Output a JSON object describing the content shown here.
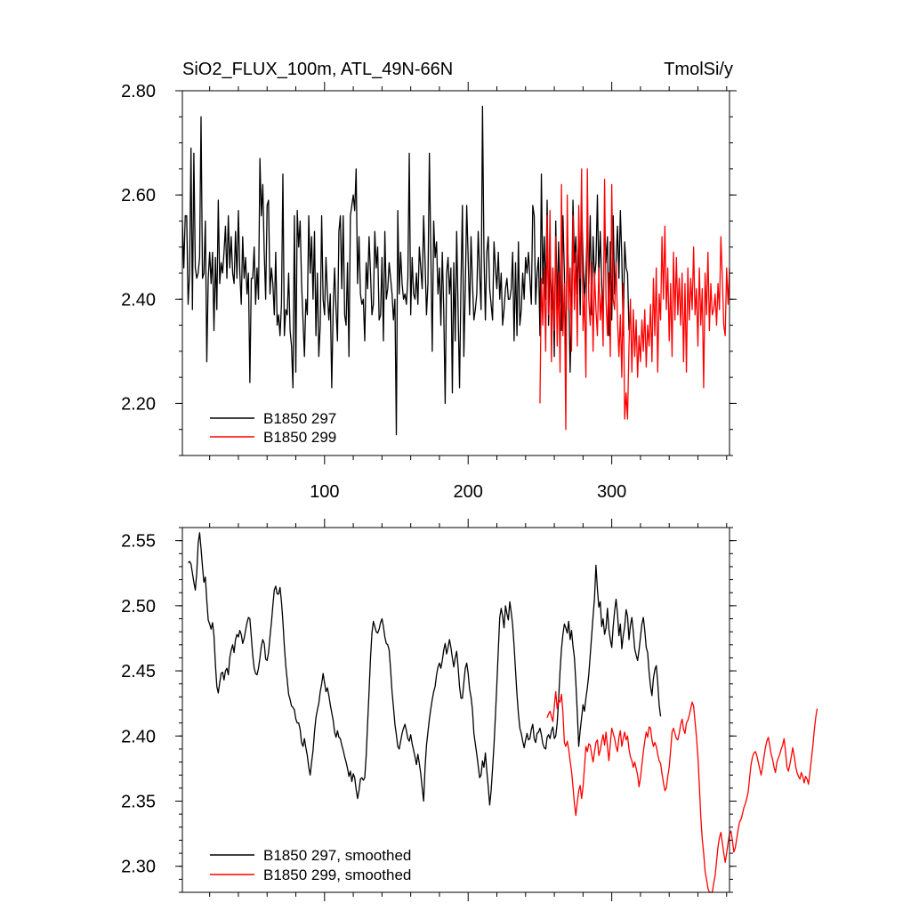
{
  "chart_data": [
    {
      "type": "line",
      "title": "SiO2_FLUX_100m, ATL_49N-66N",
      "units": "TmolSi/y",
      "xlim": [
        1,
        382
      ],
      "ylim": [
        2.1,
        2.8
      ],
      "xticks": [
        100,
        200,
        300
      ],
      "xtick_labels": [
        "100",
        "200",
        "300"
      ],
      "yticks": [
        2.2,
        2.4,
        2.6,
        2.8
      ],
      "ytick_labels": [
        "2.20",
        "2.40",
        "2.60",
        "2.80"
      ],
      "grid": false,
      "legend_position": "bottom-left",
      "series": [
        {
          "name": "B1850 297",
          "color": "#000000",
          "x_start": 1,
          "values": [
            2.55,
            2.46,
            2.56,
            2.56,
            2.39,
            2.45,
            2.69,
            2.38,
            2.68,
            2.46,
            2.44,
            2.45,
            2.48,
            2.75,
            2.44,
            2.45,
            2.55,
            2.28,
            2.44,
            2.49,
            2.43,
            2.49,
            2.34,
            2.48,
            2.38,
            2.59,
            2.43,
            2.47,
            2.45,
            2.49,
            2.54,
            2.44,
            2.56,
            2.46,
            2.52,
            2.45,
            2.43,
            2.53,
            2.44,
            2.57,
            2.45,
            2.39,
            2.52,
            2.44,
            2.48,
            2.41,
            2.45,
            2.24,
            2.44,
            2.44,
            2.5,
            2.39,
            2.46,
            2.4,
            2.67,
            2.56,
            2.62,
            2.49,
            2.4,
            2.58,
            2.59,
            2.41,
            2.46,
            2.43,
            2.37,
            2.49,
            2.35,
            2.37,
            2.33,
            2.39,
            2.64,
            2.33,
            2.38,
            2.37,
            2.45,
            2.34,
            2.31,
            2.23,
            2.56,
            2.26,
            2.57,
            2.5,
            2.55,
            2.43,
            2.36,
            2.29,
            2.4,
            2.37,
            2.56,
            2.45,
            2.52,
            2.4,
            2.53,
            2.33,
            2.45,
            2.29,
            2.35,
            2.56,
            2.4,
            2.37,
            2.48,
            2.41,
            2.36,
            2.41,
            2.23,
            2.38,
            2.46,
            2.38,
            2.32,
            2.53,
            2.56,
            2.42,
            2.56,
            2.37,
            2.35,
            2.47,
            2.29,
            2.56,
            2.58,
            2.6,
            2.57,
            2.65,
            2.43,
            2.52,
            2.41,
            2.39,
            2.4,
            2.32,
            2.47,
            2.42,
            2.52,
            2.45,
            2.37,
            2.39,
            2.53,
            2.46,
            2.5,
            2.36,
            2.37,
            2.48,
            2.32,
            2.53,
            2.4,
            2.42,
            2.47,
            2.44,
            2.41,
            2.36,
            2.4,
            2.14,
            2.57,
            2.41,
            2.49,
            2.43,
            2.4,
            2.41,
            2.39,
            2.44,
            2.68,
            2.37,
            2.48,
            2.41,
            2.4,
            2.45,
            2.39,
            2.5,
            2.46,
            2.42,
            2.56,
            2.47,
            2.37,
            2.43,
            2.68,
            2.49,
            2.3,
            2.55,
            2.48,
            2.51,
            2.41,
            2.46,
            2.35,
            2.49,
            2.38,
            2.2,
            2.45,
            2.48,
            2.41,
            2.46,
            2.22,
            2.47,
            2.32,
            2.53,
            2.38,
            2.23,
            2.43,
            2.58,
            2.29,
            2.42,
            2.58,
            2.48,
            2.37,
            2.52,
            2.43,
            2.36,
            2.38,
            2.41,
            2.53,
            2.45,
            2.38,
            2.77,
            2.49,
            2.36,
            2.49,
            2.52,
            2.42,
            2.39,
            2.36,
            2.51,
            2.46,
            2.42,
            2.49,
            2.4,
            2.45,
            2.35,
            2.38,
            2.42,
            2.44,
            2.4,
            2.4,
            2.42,
            2.49,
            2.32,
            2.47,
            2.33,
            2.51,
            2.35,
            2.38,
            2.45,
            2.4,
            2.48,
            2.45,
            2.49,
            2.44,
            2.39,
            2.58,
            2.56,
            2.39,
            2.45,
            2.48,
            2.33,
            2.64,
            2.43,
            2.52,
            2.4,
            2.59,
            2.35,
            2.47,
            2.38,
            2.46,
            2.29,
            2.55,
            2.38,
            2.51,
            2.4,
            2.34,
            2.56,
            2.45,
            2.28,
            2.54,
            2.43,
            2.26,
            2.38,
            2.59,
            2.47,
            2.52,
            2.41,
            2.53,
            2.37,
            2.58,
            2.48,
            2.4,
            2.45,
            2.54,
            2.43,
            2.56,
            2.37,
            2.52,
            2.44,
            2.47,
            2.6,
            2.44,
            2.53,
            2.43,
            2.36,
            2.55,
            2.47,
            2.52,
            2.33,
            2.51,
            2.36,
            2.56,
            2.41,
            2.47,
            2.54,
            2.44,
            2.57,
            2.48,
            2.33,
            2.51,
            2.46,
            2.45,
            2.34
          ]
        },
        {
          "name": "B1850 299",
          "color": "#ff0000",
          "x_start": 250,
          "values": [
            2.2,
            2.44,
            2.35,
            2.46,
            2.3,
            2.56,
            2.37,
            2.57,
            2.28,
            2.46,
            2.34,
            2.52,
            2.31,
            2.45,
            2.26,
            2.62,
            2.33,
            2.43,
            2.15,
            2.6,
            2.38,
            2.46,
            2.3,
            2.56,
            2.38,
            2.49,
            2.31,
            2.58,
            2.44,
            2.65,
            2.34,
            2.41,
            2.25,
            2.65,
            2.4,
            2.35,
            2.47,
            2.3,
            2.45,
            2.38,
            2.33,
            2.46,
            2.36,
            2.41,
            2.31,
            2.63,
            2.4,
            2.33,
            2.45,
            2.29,
            2.62,
            2.4,
            2.38,
            2.47,
            2.36,
            2.29,
            2.37,
            2.25,
            2.43,
            2.17,
            2.22,
            2.17,
            2.31,
            2.4,
            2.26,
            2.38,
            2.29,
            2.36,
            2.25,
            2.33,
            2.28,
            2.36,
            2.3,
            2.38,
            2.27,
            2.35,
            2.31,
            2.39,
            2.28,
            2.44,
            2.33,
            2.46,
            2.26,
            2.41,
            2.36,
            2.52,
            2.4,
            2.54,
            2.38,
            2.46,
            2.32,
            2.43,
            2.29,
            2.49,
            2.36,
            2.48,
            2.37,
            2.44,
            2.35,
            2.45,
            2.28,
            2.43,
            2.26,
            2.46,
            2.36,
            2.44,
            2.38,
            2.5,
            2.37,
            2.42,
            2.31,
            2.46,
            2.35,
            2.42,
            2.23,
            2.45,
            2.37,
            2.49,
            2.34,
            2.43,
            2.37,
            2.38,
            2.41,
            2.35,
            2.43,
            2.38,
            2.52,
            2.44,
            2.35,
            2.33,
            2.46,
            2.39,
            2.46
          ]
        }
      ]
    },
    {
      "type": "line",
      "xlim": [
        1,
        382
      ],
      "ylim": [
        2.28,
        2.56
      ],
      "xticks": [
        100,
        200,
        300
      ],
      "yticks": [
        2.3,
        2.35,
        2.4,
        2.45,
        2.5,
        2.55
      ],
      "ytick_labels": [
        "2.30",
        "2.35",
        "2.40",
        "2.45",
        "2.50",
        "2.55"
      ],
      "grid": false,
      "legend_position": "bottom-left",
      "series": [
        {
          "name": "B1850 297, smoothed",
          "color": "#000000",
          "x_start": 5,
          "values": [
            2.533,
            2.534,
            2.532,
            2.525,
            2.518,
            2.512,
            2.525,
            2.548,
            2.556,
            2.544,
            2.53,
            2.518,
            2.522,
            2.504,
            2.489,
            2.486,
            2.482,
            2.487,
            2.477,
            2.455,
            2.438,
            2.433,
            2.441,
            2.448,
            2.449,
            2.443,
            2.45,
            2.452,
            2.447,
            2.46,
            2.466,
            2.47,
            2.464,
            2.474,
            2.478,
            2.476,
            2.481,
            2.478,
            2.471,
            2.475,
            2.481,
            2.487,
            2.491,
            2.49,
            2.476,
            2.462,
            2.452,
            2.448,
            2.447,
            2.452,
            2.46,
            2.469,
            2.474,
            2.471,
            2.459,
            2.458,
            2.464,
            2.476,
            2.487,
            2.5,
            2.512,
            2.515,
            2.509,
            2.509,
            2.514,
            2.503,
            2.488,
            2.469,
            2.454,
            2.443,
            2.432,
            2.428,
            2.423,
            2.422,
            2.42,
            2.413,
            2.41,
            2.41,
            2.405,
            2.395,
            2.392,
            2.398,
            2.391,
            2.385,
            2.376,
            2.37,
            2.38,
            2.389,
            2.403,
            2.414,
            2.42,
            2.425,
            2.434,
            2.44,
            2.448,
            2.441,
            2.434,
            2.437,
            2.431,
            2.424,
            2.418,
            2.412,
            2.403,
            2.399,
            2.404,
            2.399,
            2.398,
            2.393,
            2.389,
            2.384,
            2.38,
            2.375,
            2.369,
            2.373,
            2.365,
            2.371,
            2.368,
            2.359,
            2.352,
            2.358,
            2.367,
            2.368,
            2.366,
            2.368,
            2.385,
            2.41,
            2.434,
            2.46,
            2.479,
            2.488,
            2.484,
            2.48,
            2.479,
            2.482,
            2.487,
            2.49,
            2.484,
            2.476,
            2.471,
            2.47,
            2.466,
            2.451,
            2.434,
            2.422,
            2.409,
            2.401,
            2.392,
            2.39,
            2.396,
            2.402,
            2.406,
            2.409,
            2.404,
            2.398,
            2.396,
            2.401,
            2.394,
            2.389,
            2.384,
            2.378,
            2.386,
            2.379,
            2.371,
            2.36,
            2.35,
            2.376,
            2.393,
            2.403,
            2.413,
            2.421,
            2.428,
            2.434,
            2.438,
            2.447,
            2.453,
            2.456,
            2.452,
            2.458,
            2.466,
            2.471,
            2.463,
            2.468,
            2.474,
            2.468,
            2.46,
            2.453,
            2.46,
            2.465,
            2.453,
            2.438,
            2.429,
            2.429,
            2.441,
            2.452,
            2.456,
            2.448,
            2.436,
            2.43,
            2.42,
            2.402,
            2.394,
            2.386,
            2.377,
            2.368,
            2.37,
            2.381,
            2.376,
            2.387,
            2.373,
            2.361,
            2.347,
            2.358,
            2.375,
            2.393,
            2.416,
            2.44,
            2.466,
            2.491,
            2.498,
            2.492,
            2.483,
            2.5,
            2.494,
            2.489,
            2.503,
            2.495,
            2.485,
            2.469,
            2.45,
            2.432,
            2.417,
            2.406,
            2.402,
            2.396,
            2.391,
            2.397,
            2.402,
            2.397,
            2.398,
            2.405,
            2.409,
            2.398,
            2.395,
            2.402,
            2.403,
            2.406,
            2.401,
            2.394,
            2.391,
            2.39,
            2.399,
            2.401,
            2.398,
            2.404,
            2.407,
            2.398,
            2.4,
            2.41,
            2.428,
            2.45,
            2.467,
            2.478,
            2.486,
            2.483,
            2.479,
            2.488,
            2.474,
            2.481,
            2.469,
            2.46,
            2.441,
            2.418,
            2.392,
            2.404,
            2.414,
            2.424,
            2.419,
            2.429,
            2.437,
            2.447,
            2.462,
            2.477,
            2.492,
            2.506,
            2.531,
            2.513,
            2.499,
            2.503,
            2.484,
            2.49,
            2.478,
            2.483,
            2.498,
            2.482,
            2.474,
            2.468,
            2.484,
            2.496,
            2.505,
            2.494,
            2.477,
            2.486,
            2.467,
            2.477,
            2.484,
            2.497,
            2.492,
            2.474,
            2.485,
            2.491,
            2.48,
            2.467,
            2.462,
            2.458,
            2.466,
            2.476,
            2.486,
            2.491,
            2.481,
            2.468,
            2.464,
            2.449,
            2.438,
            2.431,
            2.444,
            2.451,
            2.454,
            2.441,
            2.424,
            2.415
          ]
        },
        {
          "name": "B1850 299, smoothed",
          "color": "#ff0000",
          "x_start": 255,
          "values": [
            2.414,
            2.417,
            2.419,
            2.415,
            2.411,
            2.423,
            2.434,
            2.421,
            2.428,
            2.426,
            2.432,
            2.418,
            2.395,
            2.392,
            2.396,
            2.39,
            2.381,
            2.373,
            2.361,
            2.348,
            2.339,
            2.349,
            2.358,
            2.362,
            2.352,
            2.361,
            2.376,
            2.392,
            2.388,
            2.394,
            2.393,
            2.386,
            2.38,
            2.388,
            2.395,
            2.397,
            2.385,
            2.389,
            2.396,
            2.401,
            2.393,
            2.403,
            2.392,
            2.381,
            2.394,
            2.406,
            2.402,
            2.398,
            2.392,
            2.388,
            2.399,
            2.404,
            2.392,
            2.398,
            2.403,
            2.397,
            2.4,
            2.39,
            2.384,
            2.381,
            2.376,
            2.38,
            2.375,
            2.37,
            2.361,
            2.368,
            2.378,
            2.388,
            2.396,
            2.403,
            2.399,
            2.407,
            2.406,
            2.397,
            2.392,
            2.395,
            2.392,
            2.386,
            2.381,
            2.379,
            2.371,
            2.364,
            2.358,
            2.36,
            2.369,
            2.376,
            2.389,
            2.403,
            2.406,
            2.402,
            2.398,
            2.397,
            2.402,
            2.409,
            2.413,
            2.405,
            2.402,
            2.41,
            2.412,
            2.416,
            2.421,
            2.426,
            2.423,
            2.411,
            2.399,
            2.384,
            2.362,
            2.338,
            2.321,
            2.31,
            2.296,
            2.29,
            2.283,
            2.279,
            2.275,
            2.28,
            2.287,
            2.293,
            2.304,
            2.315,
            2.322,
            2.326,
            2.318,
            2.31,
            2.303,
            2.31,
            2.318,
            2.325,
            2.327,
            2.32,
            2.311,
            2.314,
            2.321,
            2.328,
            2.334,
            2.336,
            2.34,
            2.345,
            2.348,
            2.352,
            2.357,
            2.368,
            2.378,
            2.384,
            2.387,
            2.388,
            2.385,
            2.38,
            2.375,
            2.37,
            2.376,
            2.384,
            2.391,
            2.396,
            2.399,
            2.393,
            2.386,
            2.382,
            2.376,
            2.372,
            2.38,
            2.383,
            2.386,
            2.39,
            2.393,
            2.398,
            2.388,
            2.376,
            2.373,
            2.378,
            2.384,
            2.391,
            2.385,
            2.377,
            2.372,
            2.369,
            2.367,
            2.372,
            2.369,
            2.364,
            2.369,
            2.367,
            2.363,
            2.372,
            2.382,
            2.392,
            2.404,
            2.414,
            2.421
          ]
        }
      ]
    }
  ]
}
